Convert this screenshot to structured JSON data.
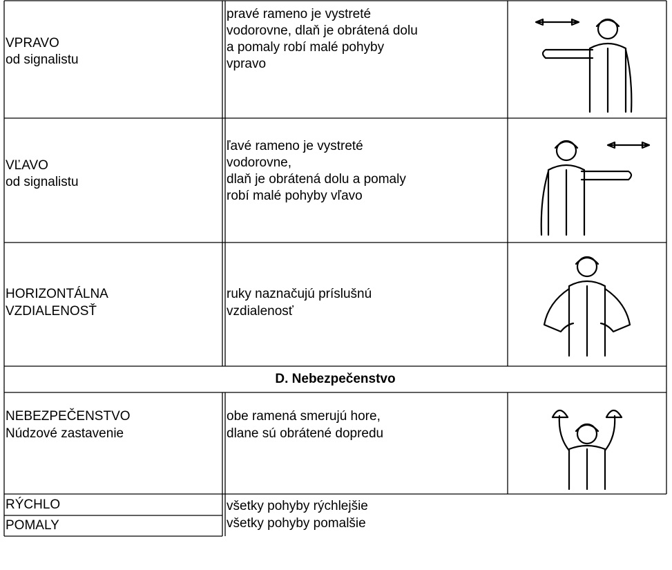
{
  "table": {
    "rows": [
      {
        "label": [
          "VPRAVO",
          "od signalistu"
        ],
        "description": [
          "pravé rameno je vystreté",
          "vodorovne, dlaň je obrátená dolu",
          "a pomaly robí malé pohyby",
          "vpravo"
        ]
      },
      {
        "label": [
          "VĽAVO",
          "od signalistu"
        ],
        "description": [
          "ľavé rameno je vystreté",
          "vodorovne,",
          "dlaň je obrátená dolu a pomaly",
          "robí malé pohyby vľavo"
        ]
      },
      {
        "label": [
          "HORIZONTÁLNA",
          "VZDIALENOSŤ"
        ],
        "description": [
          "ruky naznačujú príslušnú",
          "vzdialenosť"
        ]
      }
    ],
    "section": "D. Nebezpečenstvo",
    "danger_row": {
      "label": [
        "NEBEZPEČENSTVO",
        "Núdzové zastavenie"
      ],
      "description": [
        "obe ramená smerujú hore,",
        "dlane sú obrátené dopredu"
      ]
    },
    "speed_rows": [
      {
        "label": "RÝCHLO",
        "description": "všetky pohyby rýchlejšie"
      },
      {
        "label": "POMALY",
        "description": "všetky pohyby pomalšie"
      }
    ]
  }
}
